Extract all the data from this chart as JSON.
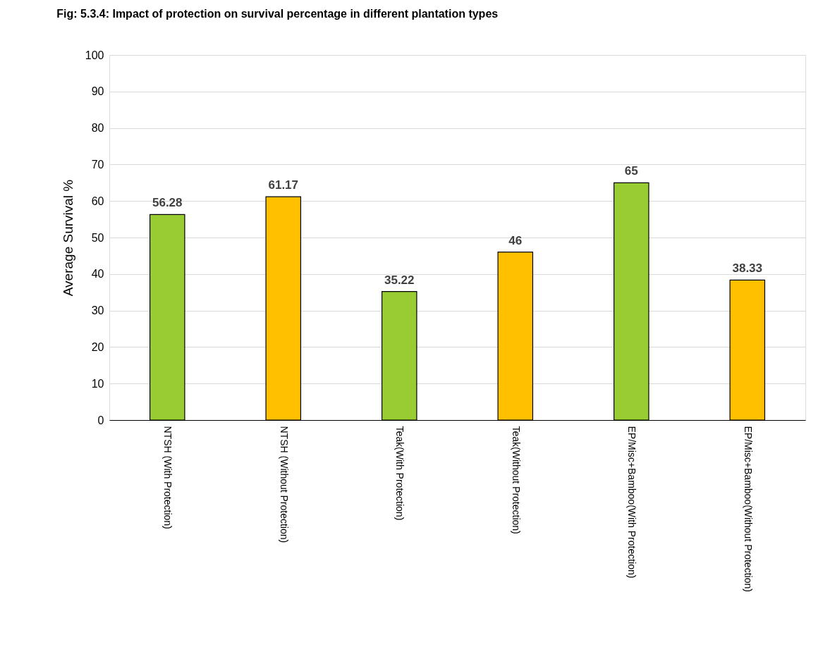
{
  "chart_data": {
    "type": "bar",
    "title": "Fig: 5.3.4: Impact of protection on survival percentage in different plantation types",
    "ylabel": "Average Survival %",
    "categories": [
      "NTSH (With Protection)",
      "NTSH (Without Protection)",
      "Teak(With Protection)",
      "Teak(Without Protection)",
      "EP/Misc+Bamboo(With Protection)",
      "EP/Misc+Bamboo(Without Protection)"
    ],
    "values": [
      56.28,
      61.17,
      35.22,
      46,
      65,
      38.33
    ],
    "colors": [
      "#99cc33",
      "#ffc000",
      "#99cc33",
      "#ffc000",
      "#99cc33",
      "#ffc000"
    ],
    "ylim": [
      0,
      100
    ],
    "yticks": [
      0,
      10,
      20,
      30,
      40,
      50,
      60,
      70,
      80,
      90,
      100
    ],
    "grid": "y",
    "data_labels": true
  }
}
